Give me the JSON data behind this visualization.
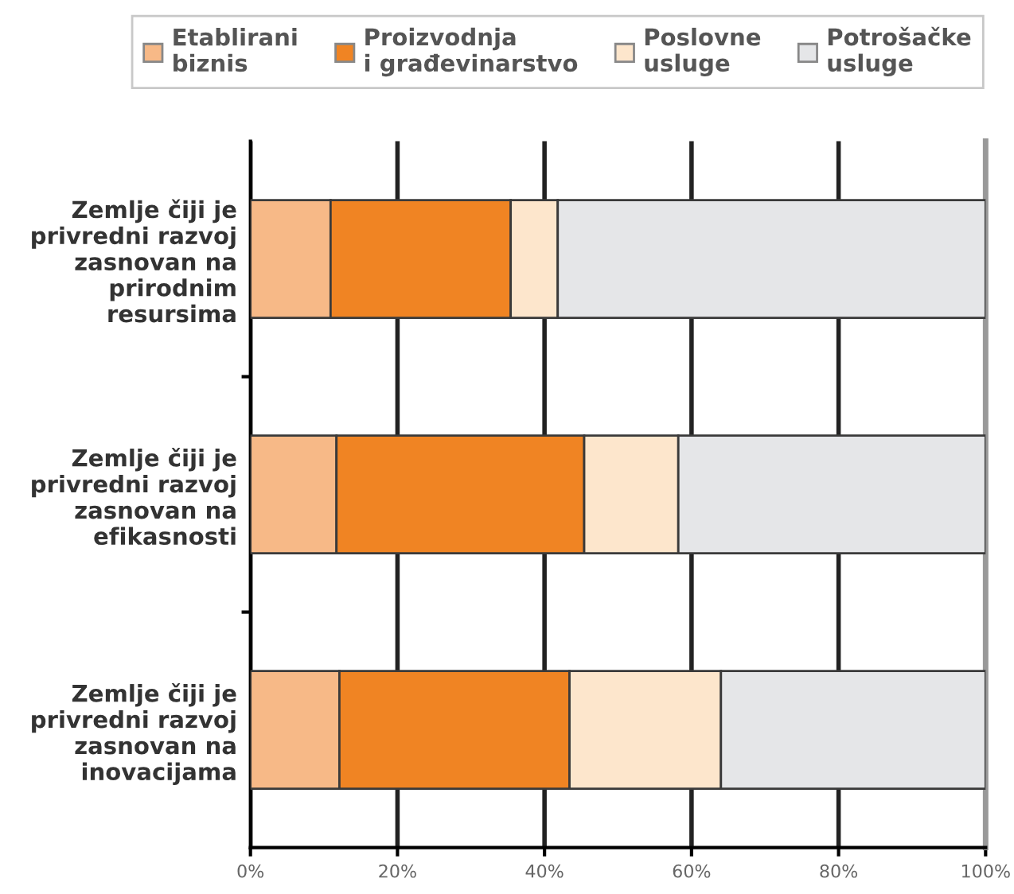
{
  "chart_data": {
    "type": "bar",
    "orientation": "horizontal",
    "stacked": true,
    "categories": [
      "Zemlje čiji je\nprivredni razvoj\nzasnovan na\nprirodnim\nresursima",
      "Zemlje čiji je\nprivredni razvoj\nzasnovan na\nefikasnosti",
      "Zemlje čiji je\nprivredni razvoj\nzasnovan na\ninovacijama"
    ],
    "series": [
      {
        "name": "Etablirani\nbiznis",
        "color": "#f7b987",
        "values": [
          10.9,
          11.7,
          12.1
        ]
      },
      {
        "name": "Proizvodnja\ni građevinarstvo",
        "color": "#f08423",
        "values": [
          24.5,
          33.7,
          31.3
        ]
      },
      {
        "name": "Poslovne\nusluge",
        "color": "#fde6cc",
        "values": [
          6.4,
          12.8,
          20.6
        ]
      },
      {
        "name": "Potrošačke\nusluge",
        "color": "#e5e6e8",
        "values": [
          58.2,
          41.8,
          36.0
        ]
      }
    ],
    "xlim": [
      0,
      100
    ],
    "xticks": [
      {
        "value": 0,
        "label": "0%"
      },
      {
        "value": 20,
        "label": "20%"
      },
      {
        "value": 40,
        "label": "40%"
      },
      {
        "value": 60,
        "label": "60%"
      },
      {
        "value": 80,
        "label": "80%"
      },
      {
        "value": 100,
        "label": "100%"
      }
    ],
    "grid": "x",
    "legend": "top"
  }
}
